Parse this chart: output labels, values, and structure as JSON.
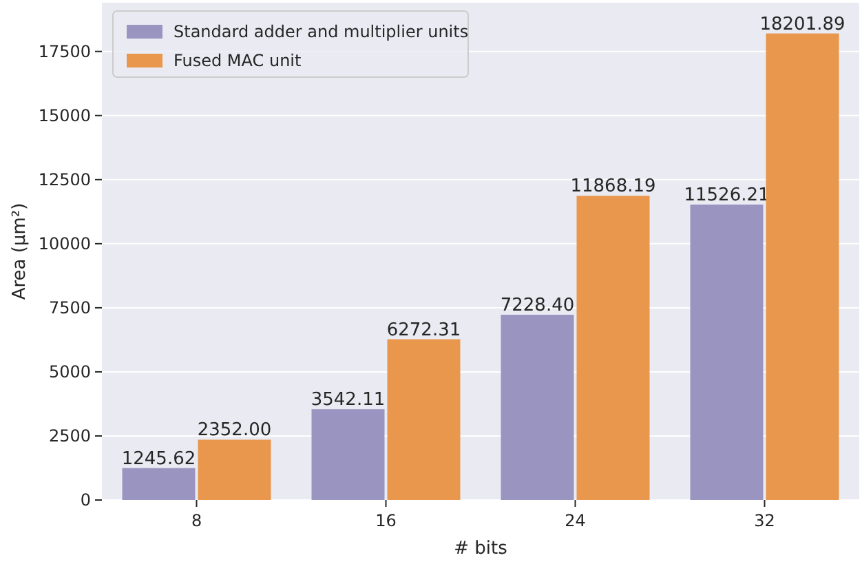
{
  "chart_data": {
    "type": "bar",
    "xlabel": "# bits",
    "ylabel": "Area (μm²)",
    "categories": [
      "8",
      "16",
      "24",
      "32"
    ],
    "series": [
      {
        "name": "Standard adder and multiplier units",
        "color": "#9a95c0",
        "values": [
          1245.62,
          3542.11,
          7228.4,
          11526.21
        ],
        "value_labels": [
          "1245.62",
          "3542.11",
          "7228.40",
          "11526.21"
        ]
      },
      {
        "name": "Fused MAC unit",
        "color": "#e8974c",
        "values": [
          2352.0,
          6272.31,
          11868.19,
          18201.89
        ],
        "value_labels": [
          "2352.00",
          "6272.31",
          "11868.19",
          "18201.89"
        ]
      }
    ],
    "ylim": [
      0,
      19400
    ],
    "yticks": [
      0,
      2500,
      5000,
      7500,
      10000,
      12500,
      15000,
      17500
    ],
    "grid": "y",
    "legend": "top left"
  }
}
